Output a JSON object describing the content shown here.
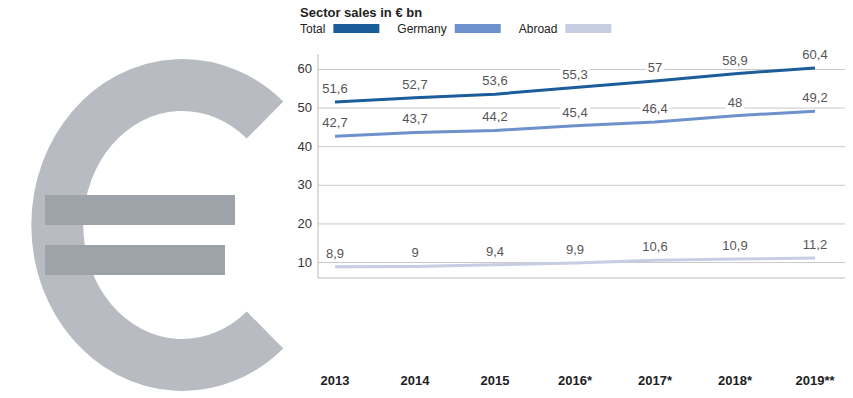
{
  "chart_data": {
    "type": "line",
    "title": "Sector sales in € bn",
    "categories": [
      "2013",
      "2014",
      "2015",
      "2016*",
      "2017*",
      "2018*",
      "2019**"
    ],
    "series": [
      {
        "name": "Total",
        "color": "#1b5c9b",
        "values": [
          51.6,
          52.7,
          53.6,
          55.3,
          57,
          58.9,
          60.4
        ],
        "value_labels": [
          "51,6",
          "52,7",
          "53,6",
          "55,3",
          "57",
          "58,9",
          "60,4"
        ]
      },
      {
        "name": "Germany",
        "color": "#6d91cc",
        "values": [
          42.7,
          43.7,
          44.2,
          45.4,
          46.4,
          48,
          49.2
        ],
        "value_labels": [
          "42,7",
          "43,7",
          "44,2",
          "45,4",
          "46,4",
          "48",
          "49,2"
        ]
      },
      {
        "name": "Abroad",
        "color": "#c7cde2",
        "values": [
          8.9,
          9,
          9.4,
          9.9,
          10.6,
          10.9,
          11.2
        ],
        "value_labels": [
          "8,9",
          "9",
          "9,4",
          "9,9",
          "10,6",
          "10,9",
          "11,2"
        ]
      }
    ],
    "ylim": [
      6,
      64
    ],
    "yticks": [
      10,
      20,
      30,
      40,
      50,
      60
    ],
    "grid": true,
    "legend": "top-left",
    "data_labels": true
  }
}
